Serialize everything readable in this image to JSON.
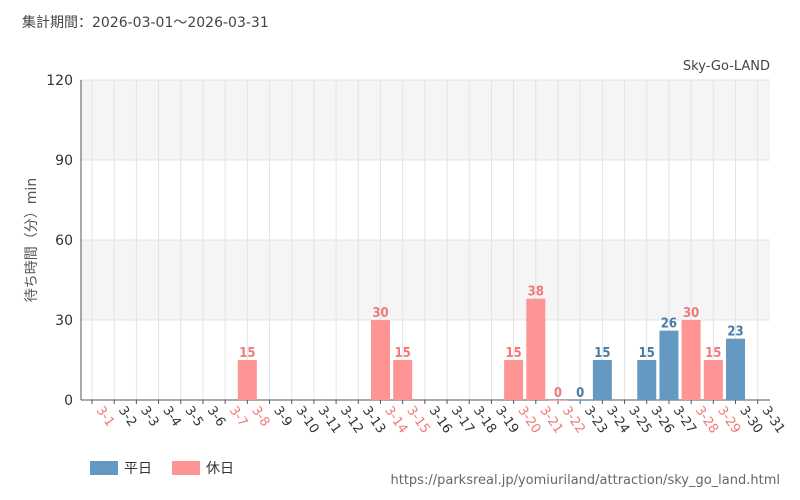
{
  "header": {
    "period": "集計期間：2026-03-01〜2026-03-31",
    "park": "Sky-Go-LAND",
    "source": "https://parksreal.jp/yomiuriland/attraction/sky_go_land.html"
  },
  "legend": [
    {
      "label": "平日",
      "color": "#6699c2"
    },
    {
      "label": "休日",
      "color": "#ff9494"
    }
  ],
  "chart_data": {
    "type": "bar",
    "ylabel": "待ち時間（分）min",
    "ylim": [
      0,
      120
    ],
    "yticks": [
      0,
      30,
      60,
      90,
      120
    ],
    "grid": true,
    "categories": [
      "3-1",
      "3-2",
      "3-3",
      "3-4",
      "3-5",
      "3-6",
      "3-7",
      "3-8",
      "3-9",
      "3-10",
      "3-11",
      "3-12",
      "3-13",
      "3-14",
      "3-15",
      "3-16",
      "3-17",
      "3-18",
      "3-19",
      "3-20",
      "3-21",
      "3-22",
      "3-23",
      "3-24",
      "3-25",
      "3-26",
      "3-27",
      "3-28",
      "3-29",
      "3-30",
      "3-31"
    ],
    "day_type": [
      "holiday",
      "weekday",
      "weekday",
      "weekday",
      "weekday",
      "weekday",
      "holiday",
      "holiday",
      "weekday",
      "weekday",
      "weekday",
      "weekday",
      "weekday",
      "holiday",
      "holiday",
      "weekday",
      "weekday",
      "weekday",
      "weekday",
      "holiday",
      "holiday",
      "holiday",
      "weekday",
      "weekday",
      "weekday",
      "weekday",
      "weekday",
      "holiday",
      "holiday",
      "weekday",
      "weekday"
    ],
    "values": [
      null,
      null,
      null,
      null,
      null,
      null,
      null,
      15,
      null,
      null,
      null,
      null,
      null,
      30,
      15,
      null,
      null,
      null,
      null,
      15,
      38,
      0,
      0,
      15,
      null,
      15,
      26,
      30,
      15,
      23,
      null
    ],
    "colors": {
      "weekday": "#6699c2",
      "holiday": "#ff9494",
      "weekday_label": "#4a7aa8",
      "holiday_label": "#f07878",
      "tick_weekday": "#333333",
      "tick_holiday": "#f07878"
    }
  }
}
